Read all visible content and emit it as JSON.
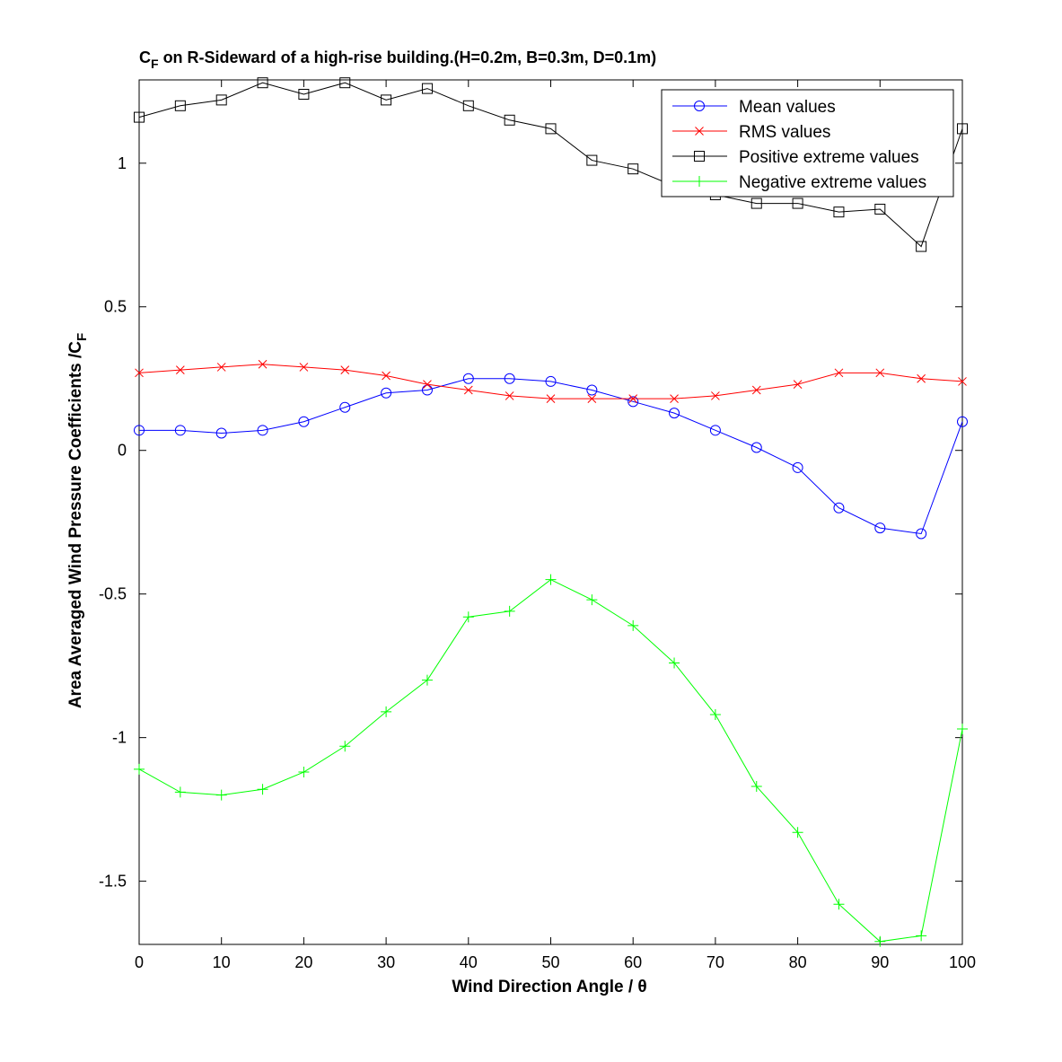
{
  "chart_data": {
    "type": "line",
    "title_main": "C",
    "title_sub": "F",
    "title_rest": " on R-Sideward of a high-rise building.(H=0.2m, B=0.3m, D=0.1m)",
    "xlabel": "Wind Direction Angle  / θ",
    "ylabel_main": "Area Averaged Wind Pressure Coefficients /C",
    "ylabel_sub": "F",
    "xlim": [
      0,
      100
    ],
    "ylim": [
      -1.72,
      1.29
    ],
    "xticks": [
      0,
      10,
      20,
      30,
      40,
      50,
      60,
      70,
      80,
      90,
      100
    ],
    "yticks": [
      -1.5,
      -1,
      -0.5,
      0,
      0.5,
      1
    ],
    "ytick_labels": [
      "-1.5",
      "-1",
      "-0.5",
      "0",
      "0.5",
      "1"
    ],
    "grid": false,
    "legend_position": "top-right",
    "x": [
      0,
      5,
      10,
      15,
      20,
      25,
      30,
      35,
      40,
      45,
      50,
      55,
      60,
      65,
      70,
      75,
      80,
      85,
      90,
      95,
      100
    ],
    "series": [
      {
        "name": "Mean values",
        "color": "#0000ff",
        "marker": "circle",
        "values": [
          0.07,
          0.07,
          0.06,
          0.07,
          0.1,
          0.15,
          0.2,
          0.21,
          0.25,
          0.25,
          0.24,
          0.21,
          0.17,
          0.13,
          0.07,
          0.01,
          -0.06,
          -0.2,
          -0.27,
          -0.29,
          0.1
        ]
      },
      {
        "name": "RMS values",
        "color": "#ff0000",
        "marker": "x",
        "values": [
          0.27,
          0.28,
          0.29,
          0.3,
          0.29,
          0.28,
          0.26,
          0.23,
          0.21,
          0.19,
          0.18,
          0.18,
          0.18,
          0.18,
          0.19,
          0.21,
          0.23,
          0.27,
          0.27,
          0.25,
          0.24
        ]
      },
      {
        "name": "Positive extreme values",
        "color": "#000000",
        "marker": "square",
        "values": [
          1.16,
          1.2,
          1.22,
          1.28,
          1.24,
          1.28,
          1.22,
          1.26,
          1.2,
          1.15,
          1.12,
          1.01,
          0.98,
          0.92,
          0.89,
          0.86,
          0.86,
          0.83,
          0.84,
          0.71,
          1.12
        ]
      },
      {
        "name": "Negative extreme values",
        "color": "#00ff00",
        "marker": "plus",
        "values": [
          -1.11,
          -1.19,
          -1.2,
          -1.18,
          -1.12,
          -1.03,
          -0.91,
          -0.8,
          -0.58,
          -0.56,
          -0.45,
          -0.52,
          -0.61,
          -0.74,
          -0.92,
          -1.17,
          -1.33,
          -1.58,
          -1.71,
          -1.69,
          -0.97
        ]
      }
    ]
  }
}
